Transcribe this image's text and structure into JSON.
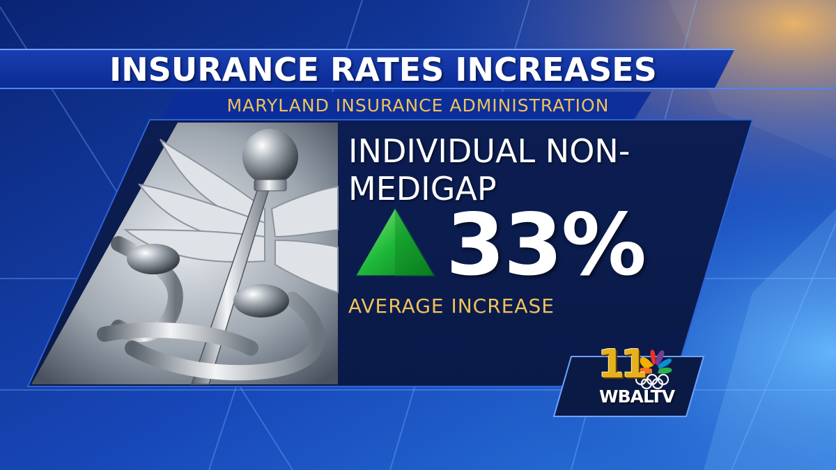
{
  "graphic": {
    "title": "INSURANCE RATES INCREASES",
    "subtitle": "MARYLAND INSURANCE ADMINISTRATION",
    "stat_label_line1": "INDIVIDUAL NON-",
    "stat_label_line2": "MEDIGAP",
    "stat_value": "33%",
    "stat_caption": "AVERAGE INCREASE",
    "trend_icon": "green-up-triangle",
    "image_icon": "caduceus-medical-symbol"
  },
  "branding": {
    "station_number": "11",
    "station_name": "WBALTV",
    "network_icon": "nbc-peacock-olympic-rings-icon"
  },
  "colors": {
    "background": "#0b2a8c",
    "title_text": "#ffffff",
    "accent_gold": "#f0c25a",
    "trend_green": "#1fb83a",
    "logo_gold": "#e7b01f"
  }
}
